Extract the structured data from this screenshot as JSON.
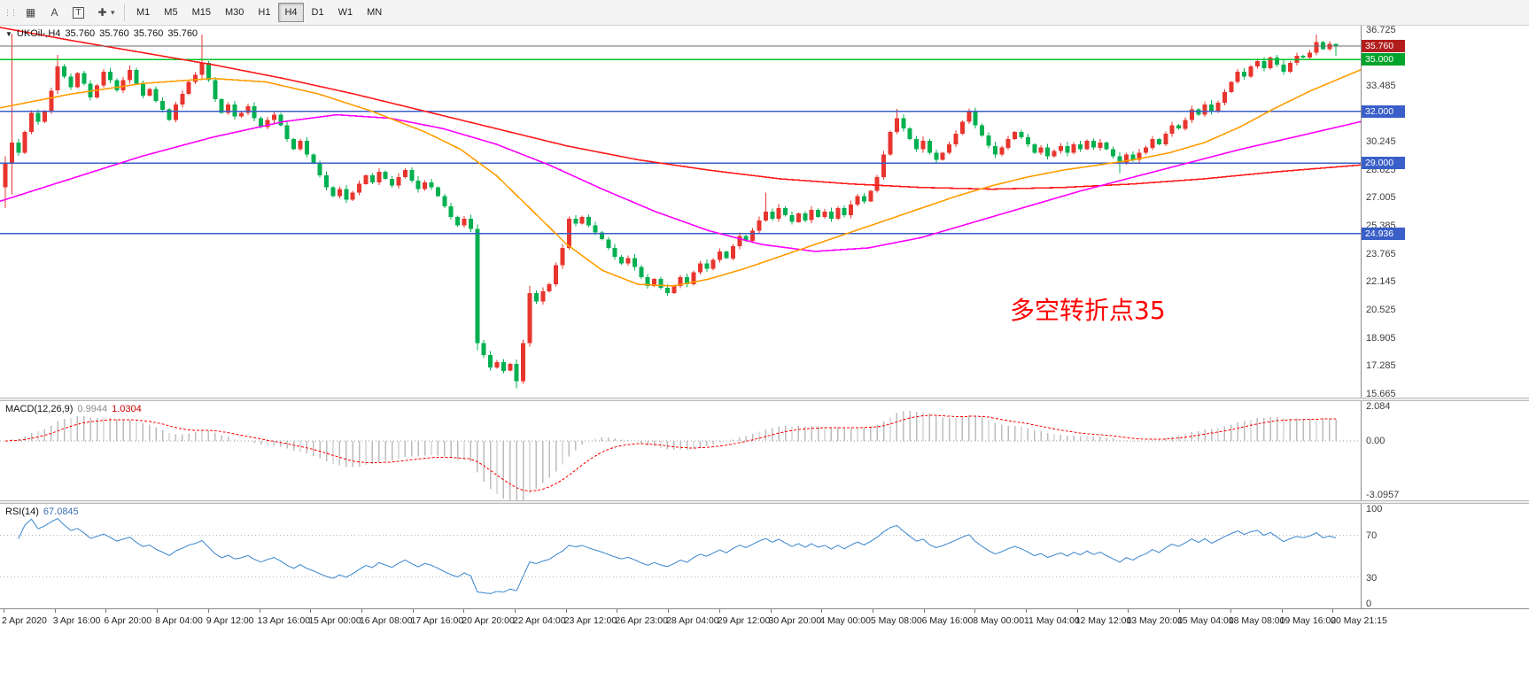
{
  "toolbar": {
    "handle_icon": "⋮⋮",
    "windows_icon": "▦",
    "auto_label": "A",
    "text_label": "T",
    "crosshair_icon": "✚",
    "caret_icon": "▾",
    "timeframes": [
      "M1",
      "M5",
      "M15",
      "M30",
      "H1",
      "H4",
      "D1",
      "W1",
      "MN"
    ],
    "active_timeframe": "H4"
  },
  "chart_header": {
    "dropdown_icon": "▼",
    "symbol_period": "UKOil-,H4",
    "open": "35.760",
    "high": "35.760",
    "low": "35.760",
    "close": "35.760"
  },
  "annotation": {
    "text": "多空转折点35",
    "color": "#ff0000"
  },
  "price_axis": {
    "ticks": [
      "36.725",
      "35.105",
      "33.485",
      "31.865",
      "30.245",
      "28.625",
      "27.005",
      "25.385",
      "23.765",
      "22.145",
      "20.525",
      "18.905",
      "17.285",
      "15.665"
    ]
  },
  "hlines": [
    {
      "price": 35.76,
      "label": "35.760",
      "color": "#6b6b6b",
      "tag_bg": "#b21e1e",
      "width": 1,
      "is_bid": true
    },
    {
      "price": 35.0,
      "label": "35.000",
      "color": "#00c428",
      "tag_bg": "#00a32c",
      "width": 1.6
    },
    {
      "price": 32.0,
      "label": "32.000",
      "color": "#3a5fc8",
      "tag_bg": "#3a5fc8",
      "width": 1.6
    },
    {
      "price": 29.0,
      "label": "29.000",
      "color": "#3a5fc8",
      "tag_bg": "#3a5fc8",
      "width": 1.6
    },
    {
      "price": 24.936,
      "label": "24.936",
      "color": "#3a5fc8",
      "tag_bg": "#3a5fc8",
      "width": 1.6
    }
  ],
  "colors": {
    "candle_up": "#e8352e",
    "candle_down": "#00b050",
    "ma_red": "#ff1a1a",
    "ma_magenta": "#ff00ff",
    "ma_orange": "#ff9d00",
    "macd_hist": "#bcbcbc",
    "macd_signal": "#ff0000",
    "rsi_line": "#4a90d2"
  },
  "chart_data": {
    "type": "candlestick+indicators",
    "symbol": "UKOil-",
    "period": "H4",
    "last_ohlc": [
      35.76,
      35.76,
      35.76,
      35.76
    ],
    "price_range": [
      15.45,
      36.95
    ],
    "closes": [
      29.0,
      30.2,
      29.6,
      30.8,
      31.9,
      31.4,
      32.0,
      33.2,
      34.6,
      34.0,
      33.4,
      34.2,
      33.6,
      32.8,
      33.5,
      34.3,
      33.8,
      33.2,
      33.8,
      34.4,
      33.6,
      32.9,
      33.3,
      32.6,
      32.1,
      31.5,
      32.4,
      33.0,
      33.7,
      34.1,
      34.8,
      33.8,
      32.7,
      31.9,
      32.4,
      31.7,
      31.9,
      32.3,
      31.6,
      31.1,
      31.5,
      31.8,
      31.2,
      30.4,
      29.8,
      30.3,
      29.5,
      29.0,
      28.3,
      27.6,
      27.1,
      27.5,
      26.9,
      27.3,
      27.8,
      28.3,
      27.9,
      28.5,
      28.1,
      27.7,
      28.2,
      28.6,
      28.0,
      27.5,
      27.9,
      27.6,
      27.1,
      26.5,
      25.9,
      25.4,
      25.8,
      25.2,
      18.6,
      17.9,
      17.2,
      17.5,
      17.0,
      17.4,
      16.4,
      18.6,
      21.5,
      21.0,
      21.6,
      22.0,
      23.1,
      24.1,
      25.8,
      25.5,
      25.9,
      25.4,
      25.0,
      24.6,
      24.1,
      23.6,
      23.2,
      23.5,
      23.0,
      22.4,
      21.9,
      22.3,
      21.8,
      21.5,
      21.9,
      22.4,
      22.0,
      22.7,
      23.2,
      22.9,
      23.4,
      23.9,
      23.5,
      24.2,
      24.8,
      24.5,
      25.1,
      25.7,
      26.2,
      25.8,
      26.4,
      26.0,
      25.6,
      26.1,
      25.7,
      26.3,
      25.9,
      26.2,
      25.8,
      26.4,
      26.0,
      26.6,
      27.1,
      26.8,
      27.4,
      28.2,
      29.5,
      30.8,
      31.6,
      31.0,
      30.4,
      29.8,
      30.3,
      29.6,
      29.2,
      29.6,
      30.1,
      30.7,
      31.4,
      32.0,
      31.2,
      30.6,
      30.0,
      29.5,
      29.9,
      30.4,
      30.8,
      30.5,
      30.1,
      29.6,
      29.9,
      29.4,
      29.7,
      30.0,
      29.6,
      30.1,
      29.8,
      30.3,
      29.9,
      30.2,
      29.8,
      29.4,
      29.0,
      29.5,
      29.2,
      29.6,
      29.9,
      30.4,
      30.1,
      30.7,
      31.2,
      31.0,
      31.5,
      32.1,
      31.8,
      32.4,
      32.0,
      32.5,
      33.1,
      33.7,
      34.3,
      34.0,
      34.6,
      34.9,
      34.5,
      35.1,
      34.7,
      34.3,
      34.8,
      35.2,
      35.1,
      35.4,
      36.0,
      35.6,
      35.9,
      35.76
    ],
    "specials": {
      "0": [
        27.6,
        29.4,
        26.4,
        29.0
      ],
      "1": [
        29.0,
        36.5,
        27.2,
        30.2
      ],
      "8": [
        null,
        35.25,
        null,
        null
      ],
      "30": [
        34.1,
        36.45,
        33.9,
        34.8
      ],
      "72": [
        25.2,
        25.45,
        18.2,
        18.6
      ],
      "78": [
        17.4,
        17.65,
        15.98,
        16.4
      ],
      "80": [
        18.6,
        21.9,
        18.4,
        21.5
      ],
      "116": [
        null,
        27.3,
        null,
        null
      ],
      "136": [
        null,
        32.15,
        null,
        null
      ],
      "170": [
        null,
        null,
        28.42,
        null
      ],
      "200": [
        null,
        36.45,
        null,
        null
      ],
      "203": [
        null,
        35.9,
        35.2,
        null
      ]
    },
    "ma_red": [
      [
        0,
        36.85
      ],
      [
        80,
        36.1
      ],
      [
        160,
        35.4
      ],
      [
        240,
        34.7
      ],
      [
        320,
        33.9
      ],
      [
        400,
        33.0
      ],
      [
        480,
        32.0
      ],
      [
        560,
        31.0
      ],
      [
        640,
        30.0
      ],
      [
        720,
        29.2
      ],
      [
        800,
        28.6
      ],
      [
        880,
        28.1
      ],
      [
        960,
        27.8
      ],
      [
        1040,
        27.6
      ],
      [
        1120,
        27.5
      ],
      [
        1200,
        27.6
      ],
      [
        1280,
        27.8
      ],
      [
        1360,
        28.1
      ],
      [
        1440,
        28.5
      ],
      [
        1536,
        28.9
      ]
    ],
    "ma_magenta": [
      [
        0,
        26.8
      ],
      [
        80,
        28.1
      ],
      [
        160,
        29.4
      ],
      [
        240,
        30.5
      ],
      [
        320,
        31.4
      ],
      [
        380,
        31.8
      ],
      [
        440,
        31.6
      ],
      [
        500,
        31.0
      ],
      [
        560,
        30.1
      ],
      [
        620,
        28.9
      ],
      [
        680,
        27.5
      ],
      [
        740,
        26.2
      ],
      [
        800,
        25.1
      ],
      [
        860,
        24.3
      ],
      [
        920,
        23.9
      ],
      [
        980,
        24.1
      ],
      [
        1040,
        24.7
      ],
      [
        1100,
        25.6
      ],
      [
        1160,
        26.5
      ],
      [
        1220,
        27.4
      ],
      [
        1280,
        28.2
      ],
      [
        1340,
        29.0
      ],
      [
        1400,
        29.8
      ],
      [
        1460,
        30.5
      ],
      [
        1536,
        31.4
      ]
    ],
    "ma_orange": [
      [
        0,
        32.2
      ],
      [
        80,
        33.0
      ],
      [
        160,
        33.6
      ],
      [
        240,
        33.9
      ],
      [
        300,
        33.7
      ],
      [
        360,
        33.0
      ],
      [
        420,
        32.0
      ],
      [
        480,
        30.8
      ],
      [
        520,
        29.8
      ],
      [
        560,
        28.3
      ],
      [
        600,
        26.3
      ],
      [
        640,
        24.3
      ],
      [
        680,
        22.8
      ],
      [
        720,
        22.0
      ],
      [
        760,
        21.9
      ],
      [
        800,
        22.3
      ],
      [
        840,
        22.9
      ],
      [
        880,
        23.6
      ],
      [
        920,
        24.3
      ],
      [
        960,
        25.0
      ],
      [
        1000,
        25.7
      ],
      [
        1040,
        26.4
      ],
      [
        1080,
        27.1
      ],
      [
        1120,
        27.7
      ],
      [
        1160,
        28.2
      ],
      [
        1200,
        28.6
      ],
      [
        1240,
        28.9
      ],
      [
        1280,
        29.2
      ],
      [
        1320,
        29.6
      ],
      [
        1360,
        30.2
      ],
      [
        1400,
        31.1
      ],
      [
        1440,
        32.2
      ],
      [
        1480,
        33.2
      ],
      [
        1536,
        34.4
      ]
    ],
    "macd": {
      "label": "MACD(12,26,9)",
      "value1": "0.9944",
      "value2": "1.0304",
      "params": [
        12,
        26,
        9
      ],
      "axis": [
        2.084,
        0,
        -3.0957
      ],
      "axis_labels": [
        "2.084",
        "0.00",
        "-3.0957"
      ]
    },
    "rsi": {
      "label": "RSI(14)",
      "value": "67.0845",
      "period": 14,
      "levels": [
        "100",
        "70",
        "30",
        "0"
      ]
    },
    "time_labels": [
      "2 Apr 2020",
      "3 Apr 16:00",
      "6 Apr 20:00",
      "8 Apr 04:00",
      "9 Apr 12:00",
      "13 Apr 16:00",
      "15 Apr 00:00",
      "16 Apr 08:00",
      "17 Apr 16:00",
      "20 Apr 20:00",
      "22 Apr 04:00",
      "23 Apr 12:00",
      "26 Apr 23:00",
      "28 Apr 04:00",
      "29 Apr 12:00",
      "30 Apr 20:00",
      "4 May 00:00",
      "5 May 08:00",
      "6 May 16:00",
      "8 May 00:00",
      "11 May 04:00",
      "12 May 12:00",
      "13 May 20:00",
      "15 May 04:00",
      "18 May 08:00",
      "19 May 16:00",
      "20 May 21:15"
    ]
  }
}
